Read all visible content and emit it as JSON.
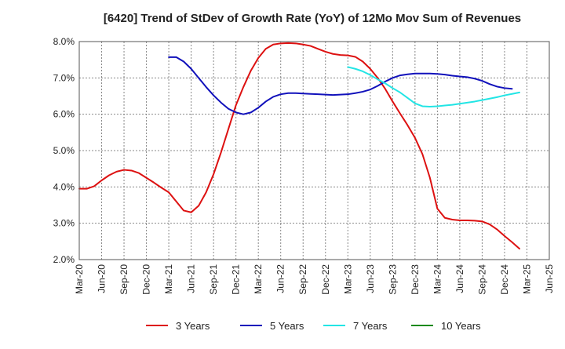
{
  "chart_data": {
    "type": "line",
    "title": "[6420]  Trend of StDev of Growth Rate (YoY) of 12Mo Mov Sum of Revenues",
    "xlabel": "",
    "ylabel": "",
    "ylim": [
      2.0,
      8.0
    ],
    "yticks": [
      "2.0%",
      "3.0%",
      "4.0%",
      "5.0%",
      "6.0%",
      "7.0%",
      "8.0%"
    ],
    "ytick_values": [
      2.0,
      3.0,
      4.0,
      5.0,
      6.0,
      7.0,
      8.0
    ],
    "x_start": "Mar-20",
    "x_end": "Jun-25",
    "x_ticks": [
      "Mar-20",
      "Jun-20",
      "Sep-20",
      "Dec-20",
      "Mar-21",
      "Jun-21",
      "Sep-21",
      "Dec-21",
      "Mar-22",
      "Jun-22",
      "Sep-22",
      "Dec-22",
      "Mar-23",
      "Jun-23",
      "Sep-23",
      "Dec-23",
      "Mar-24",
      "Jun-24",
      "Sep-24",
      "Dec-24",
      "Mar-25",
      "Jun-25"
    ],
    "grid": true,
    "legend_position": "bottom",
    "series": [
      {
        "name": "3 Years",
        "color": "#dd1111",
        "start_index": 0,
        "values": [
          3.95,
          3.95,
          4.02,
          4.18,
          4.32,
          4.42,
          4.47,
          4.45,
          4.38,
          4.25,
          4.12,
          3.98,
          3.85,
          3.6,
          3.35,
          3.3,
          3.48,
          3.85,
          4.35,
          4.95,
          5.6,
          6.25,
          6.75,
          7.2,
          7.55,
          7.8,
          7.92,
          7.95,
          7.96,
          7.95,
          7.92,
          7.88,
          7.8,
          7.72,
          7.66,
          7.63,
          7.62,
          7.58,
          7.45,
          7.25,
          7.0,
          6.7,
          6.35,
          6.02,
          5.7,
          5.35,
          4.9,
          4.25,
          3.4,
          3.15,
          3.1,
          3.08,
          3.08,
          3.07,
          3.05,
          2.97,
          2.83,
          2.65,
          2.48,
          2.3
        ]
      },
      {
        "name": "5 Years",
        "color": "#1111bb",
        "start_index": 12,
        "values": [
          7.57,
          7.57,
          7.45,
          7.25,
          7.0,
          6.75,
          6.52,
          6.32,
          6.15,
          6.05,
          6.0,
          6.05,
          6.18,
          6.35,
          6.48,
          6.55,
          6.58,
          6.58,
          6.57,
          6.56,
          6.55,
          6.54,
          6.53,
          6.54,
          6.55,
          6.58,
          6.62,
          6.68,
          6.78,
          6.9,
          7.0,
          7.07,
          7.1,
          7.12,
          7.12,
          7.12,
          7.11,
          7.09,
          7.06,
          7.04,
          7.02,
          6.98,
          6.92,
          6.83,
          6.76,
          6.72,
          6.7
        ]
      },
      {
        "name": "7 Years",
        "color": "#22e5e5",
        "start_index": 36,
        "values": [
          7.3,
          7.25,
          7.18,
          7.08,
          6.96,
          6.85,
          6.72,
          6.6,
          6.45,
          6.3,
          6.22,
          6.21,
          6.22,
          6.24,
          6.26,
          6.29,
          6.32,
          6.35,
          6.39,
          6.43,
          6.47,
          6.52,
          6.56,
          6.6
        ]
      },
      {
        "name": "10 Years",
        "color": "#1a8a1a",
        "start_index": 0,
        "values": []
      }
    ]
  }
}
